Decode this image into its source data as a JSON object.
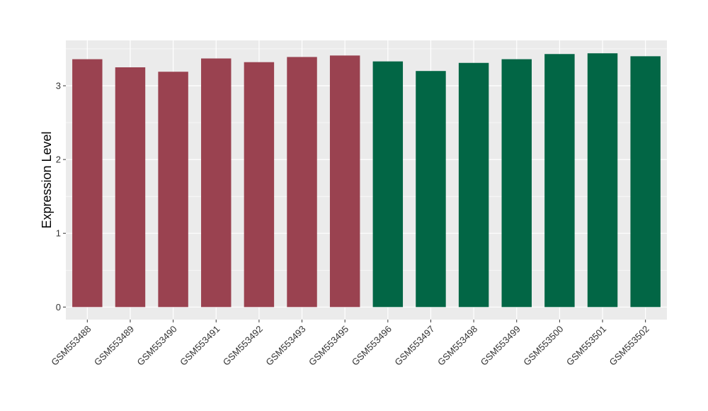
{
  "chart_data": {
    "type": "bar",
    "title": "",
    "xlabel": "",
    "ylabel": "Expression Level",
    "ylim": [
      -0.17,
      3.615
    ],
    "yticks": [
      0,
      1,
      2,
      3
    ],
    "grid": true,
    "categories": [
      "GSM553488",
      "GSM553489",
      "GSM553490",
      "GSM553491",
      "GSM553492",
      "GSM553493",
      "GSM553495",
      "GSM553496",
      "GSM553497",
      "GSM553498",
      "GSM553499",
      "GSM553500",
      "GSM553501",
      "GSM553502"
    ],
    "values": [
      3.36,
      3.25,
      3.19,
      3.37,
      3.32,
      3.39,
      3.41,
      3.33,
      3.2,
      3.31,
      3.36,
      3.43,
      3.44,
      3.4
    ],
    "group_colors": [
      "#9a4250",
      "#9a4250",
      "#9a4250",
      "#9a4250",
      "#9a4250",
      "#9a4250",
      "#9a4250",
      "#026645",
      "#026645",
      "#026645",
      "#026645",
      "#026645",
      "#026645",
      "#026645"
    ],
    "panel_color": "#ebebeb"
  }
}
